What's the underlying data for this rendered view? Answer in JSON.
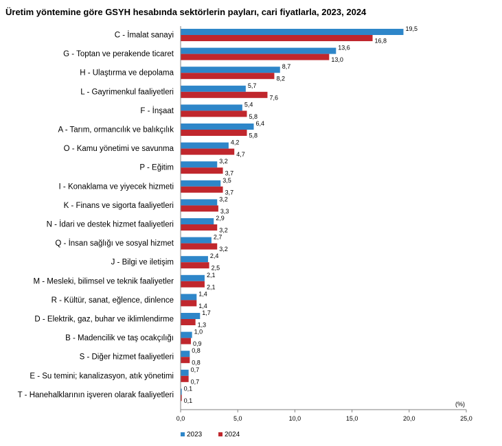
{
  "chart_data": {
    "type": "bar",
    "orientation": "horizontal",
    "title": "Üretim yöntemine göre GSYH hesabında sektörlerin payları, cari fiyatlarla, 2023, 2024",
    "unit_label": "(%)",
    "categories": [
      "C - İmalat sanayi",
      "G - Toptan ve perakende ticaret",
      "H - Ulaştırma ve depolama",
      "L - Gayrimenkul faaliyetleri",
      "F - İnşaat",
      "A - Tarım, ormancılık ve balıkçılık",
      "O - Kamu yönetimi ve savunma",
      "P - Eğitim",
      "I - Konaklama ve yiyecek hizmeti",
      "K - Finans ve sigorta faaliyetleri",
      "N - İdari ve destek hizmet faaliyetleri",
      "Q - İnsan sağlığı ve sosyal hizmet",
      "J - Bilgi ve iletişim",
      "M - Mesleki, bilimsel ve teknik faaliyetler",
      "R - Kültür, sanat, eğlence, dinlence",
      "D - Elektrik, gaz, buhar ve iklimlendirme",
      "B - Madencilik ve taş ocakçılığı",
      "S - Diğer hizmet faaliyetleri",
      "E - Su temini; kanalizasyon, atık yönetimi",
      "T - Hanehalklarının işveren olarak faaliyetleri"
    ],
    "series": [
      {
        "name": "2023",
        "color": "#2e86c9",
        "values": [
          19.5,
          13.6,
          8.7,
          5.7,
          5.4,
          6.4,
          4.2,
          3.2,
          3.5,
          3.2,
          2.9,
          2.7,
          2.4,
          2.1,
          1.4,
          1.7,
          1.0,
          0.8,
          0.7,
          0.1
        ],
        "value_labels": [
          "19,5",
          "13,6",
          "8,7",
          "5,7",
          "5,4",
          "6,4",
          "4,2",
          "3,2",
          "3,5",
          "3,2",
          "2,9",
          "2,7",
          "2,4",
          "2,1",
          "1,4",
          "1,7",
          "1,0",
          "0,8",
          "0,7",
          "0,1"
        ]
      },
      {
        "name": "2024",
        "color": "#c0272d",
        "values": [
          16.8,
          13.0,
          8.2,
          7.6,
          5.8,
          5.8,
          4.7,
          3.7,
          3.7,
          3.3,
          3.2,
          3.2,
          2.5,
          2.1,
          1.4,
          1.3,
          0.9,
          0.8,
          0.7,
          0.1
        ],
        "value_labels": [
          "16,8",
          "13,0",
          "8,2",
          "7,6",
          "5,8",
          "5,8",
          "4,7",
          "3,7",
          "3,7",
          "3,3",
          "3,2",
          "3,2",
          "2,5",
          "2,1",
          "1,4",
          "1,3",
          "0,9",
          "0,8",
          "0,7",
          "0,1"
        ]
      }
    ],
    "xlim": [
      0,
      25
    ],
    "xticks": [
      0,
      5,
      10,
      15,
      20,
      25
    ],
    "xtick_labels": [
      "0,0",
      "5,0",
      "10,0",
      "15,0",
      "20,0",
      "25,0"
    ],
    "grid": false,
    "legend_position": "bottom-left"
  }
}
